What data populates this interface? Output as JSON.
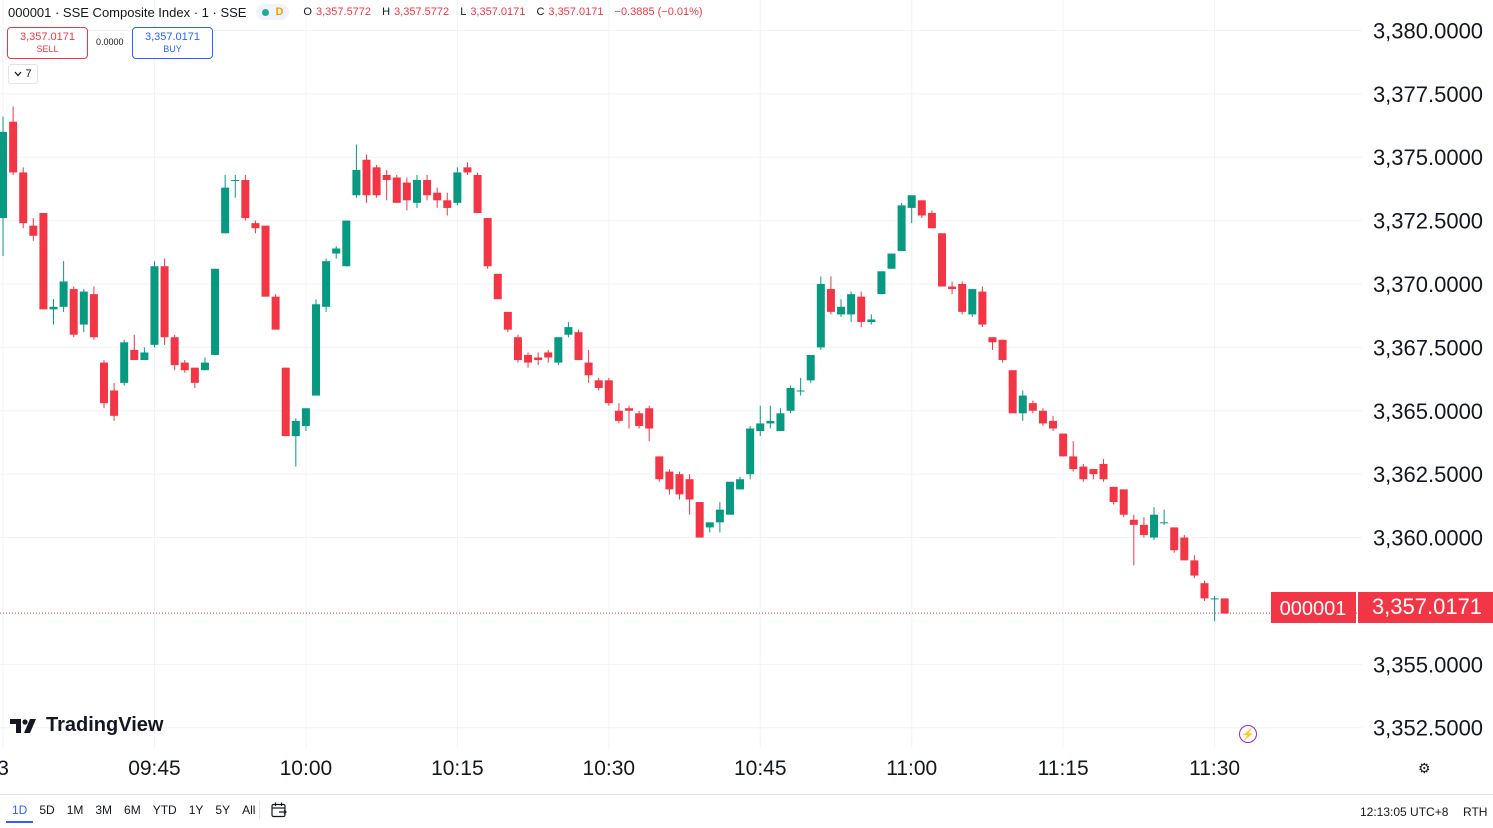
{
  "symbol": {
    "title": "000001 · SSE Composite Index · 1 · SSE",
    "badge": "D",
    "ohlc": {
      "o_label": "O",
      "o": "3,357.5772",
      "h_label": "H",
      "h": "3,357.5772",
      "l_label": "L",
      "l": "3,357.0171",
      "c_label": "C",
      "c": "3,357.0171",
      "change": "−0.3885 (−0.01%)"
    }
  },
  "trade": {
    "sell_price": "3,357.0171",
    "sell_label": "SELL",
    "spread": "0.0000",
    "buy_price": "3,357.0171",
    "buy_label": "BUY",
    "indicator_count": "7"
  },
  "price_tag": {
    "symbol": "000001",
    "price": "3,357.0171"
  },
  "watermark": "TradingView",
  "bottom": {
    "ranges": [
      "1D",
      "5D",
      "1M",
      "3M",
      "6M",
      "YTD",
      "1Y",
      "5Y",
      "All"
    ],
    "active_range": "1D",
    "clock": "12:13:05 UTC+8",
    "session": "RTH"
  },
  "colors": {
    "up": "#089981",
    "down": "#f23645",
    "accent": "#2962ff"
  },
  "chart_data": {
    "type": "candlestick",
    "interval": "1 minute",
    "y_ticks": [
      "3,380.0000",
      "3,377.5000",
      "3,375.0000",
      "3,372.5000",
      "3,370.0000",
      "3,367.5000",
      "3,365.0000",
      "3,362.5000",
      "3,360.0000",
      "3,355.0000",
      "3,352.5000"
    ],
    "y_tick_values": [
      3380,
      3377.5,
      3375,
      3372.5,
      3370,
      3367.5,
      3365,
      3362.5,
      3360,
      3355,
      3352.5
    ],
    "ylim": [
      3351.7,
      3381.2
    ],
    "x_ticks": [
      "3",
      "09:45",
      "10:00",
      "10:15",
      "10:30",
      "10:45",
      "11:00",
      "11:15",
      "11:30"
    ],
    "x_tick_minutes": [
      570,
      585,
      600,
      615,
      630,
      645,
      660,
      675,
      690
    ],
    "xlim_minutes": [
      569.7,
      704.6
    ],
    "last_price": 3357.0171,
    "candles": [
      {
        "t": 569,
        "o": 3371.1,
        "h": 3372.4,
        "l": 3370.7,
        "c": 3372.4
      },
      {
        "t": 570,
        "o": 3372.6,
        "h": 3376.6,
        "l": 3371.1,
        "c": 3376.0
      },
      {
        "t": 571,
        "o": 3376.4,
        "h": 3377.0,
        "l": 3374.3,
        "c": 3374.4
      },
      {
        "t": 572,
        "o": 3374.4,
        "h": 3374.6,
        "l": 3372.2,
        "c": 3372.4
      },
      {
        "t": 573,
        "o": 3372.3,
        "h": 3372.6,
        "l": 3371.7,
        "c": 3371.9
      },
      {
        "t": 574,
        "o": 3372.8,
        "h": 3372.8,
        "l": 3369.0,
        "c": 3369.0
      },
      {
        "t": 575,
        "o": 3369.0,
        "h": 3369.4,
        "l": 3368.4,
        "c": 3369.1
      },
      {
        "t": 576,
        "o": 3369.1,
        "h": 3370.9,
        "l": 3368.9,
        "c": 3370.1
      },
      {
        "t": 577,
        "o": 3369.8,
        "h": 3369.9,
        "l": 3367.9,
        "c": 3368.0
      },
      {
        "t": 578,
        "o": 3368.4,
        "h": 3369.8,
        "l": 3368.1,
        "c": 3369.7
      },
      {
        "t": 579,
        "o": 3369.6,
        "h": 3369.9,
        "l": 3367.8,
        "c": 3367.9
      },
      {
        "t": 580,
        "o": 3366.9,
        "h": 3367.0,
        "l": 3365.1,
        "c": 3365.3
      },
      {
        "t": 581,
        "o": 3365.8,
        "h": 3366.1,
        "l": 3364.6,
        "c": 3364.8
      },
      {
        "t": 582,
        "o": 3366.1,
        "h": 3367.8,
        "l": 3366.0,
        "c": 3367.7
      },
      {
        "t": 583,
        "o": 3367.4,
        "h": 3368.0,
        "l": 3367.0,
        "c": 3367.0
      },
      {
        "t": 584,
        "o": 3367.0,
        "h": 3367.5,
        "l": 3367.0,
        "c": 3367.3
      },
      {
        "t": 585,
        "o": 3367.6,
        "h": 3370.9,
        "l": 3367.5,
        "c": 3370.7
      },
      {
        "t": 586,
        "o": 3370.7,
        "h": 3371.0,
        "l": 3367.6,
        "c": 3367.9
      },
      {
        "t": 587,
        "o": 3367.9,
        "h": 3368.0,
        "l": 3366.6,
        "c": 3366.8
      },
      {
        "t": 588,
        "o": 3366.9,
        "h": 3367.0,
        "l": 3366.5,
        "c": 3366.6
      },
      {
        "t": 589,
        "o": 3366.7,
        "h": 3366.7,
        "l": 3365.9,
        "c": 3366.1
      },
      {
        "t": 590,
        "o": 3366.6,
        "h": 3367.1,
        "l": 3366.6,
        "c": 3366.9
      },
      {
        "t": 591,
        "o": 3367.2,
        "h": 3370.6,
        "l": 3367.2,
        "c": 3370.6
      },
      {
        "t": 592,
        "o": 3372.0,
        "h": 3374.3,
        "l": 3372.0,
        "c": 3373.8
      },
      {
        "t": 593,
        "o": 3374.1,
        "h": 3374.3,
        "l": 3373.4,
        "c": 3374.1
      },
      {
        "t": 594,
        "o": 3374.1,
        "h": 3374.3,
        "l": 3372.5,
        "c": 3372.6
      },
      {
        "t": 595,
        "o": 3372.4,
        "h": 3372.5,
        "l": 3372.0,
        "c": 3372.2
      },
      {
        "t": 596,
        "o": 3372.3,
        "h": 3372.3,
        "l": 3369.5,
        "c": 3369.5
      },
      {
        "t": 597,
        "o": 3369.5,
        "h": 3369.6,
        "l": 3368.2,
        "c": 3368.2
      },
      {
        "t": 598,
        "o": 3366.7,
        "h": 3366.7,
        "l": 3364.0,
        "c": 3364.0
      },
      {
        "t": 599,
        "o": 3364.0,
        "h": 3364.7,
        "l": 3362.8,
        "c": 3364.6
      },
      {
        "t": 600,
        "o": 3364.4,
        "h": 3365.1,
        "l": 3364.2,
        "c": 3365.1
      },
      {
        "t": 601,
        "o": 3365.6,
        "h": 3369.4,
        "l": 3365.6,
        "c": 3369.2
      },
      {
        "t": 602,
        "o": 3369.1,
        "h": 3371.0,
        "l": 3368.9,
        "c": 3370.9
      },
      {
        "t": 603,
        "o": 3371.2,
        "h": 3371.5,
        "l": 3371.0,
        "c": 3371.4
      },
      {
        "t": 604,
        "o": 3370.7,
        "h": 3372.5,
        "l": 3370.7,
        "c": 3372.5
      },
      {
        "t": 605,
        "o": 3373.5,
        "h": 3375.5,
        "l": 3373.4,
        "c": 3374.5
      },
      {
        "t": 606,
        "o": 3374.9,
        "h": 3375.1,
        "l": 3373.2,
        "c": 3373.5
      },
      {
        "t": 607,
        "o": 3374.6,
        "h": 3374.7,
        "l": 3373.4,
        "c": 3373.5
      },
      {
        "t": 608,
        "o": 3374.3,
        "h": 3374.5,
        "l": 3373.3,
        "c": 3374.1
      },
      {
        "t": 609,
        "o": 3374.2,
        "h": 3374.3,
        "l": 3373.2,
        "c": 3373.2
      },
      {
        "t": 610,
        "o": 3374.0,
        "h": 3374.2,
        "l": 3372.9,
        "c": 3373.3
      },
      {
        "t": 611,
        "o": 3373.2,
        "h": 3374.3,
        "l": 3373.0,
        "c": 3374.1
      },
      {
        "t": 612,
        "o": 3374.1,
        "h": 3374.3,
        "l": 3373.3,
        "c": 3373.5
      },
      {
        "t": 613,
        "o": 3373.6,
        "h": 3373.8,
        "l": 3373.0,
        "c": 3373.3
      },
      {
        "t": 614,
        "o": 3373.3,
        "h": 3373.6,
        "l": 3372.7,
        "c": 3373.0
      },
      {
        "t": 615,
        "o": 3373.2,
        "h": 3374.6,
        "l": 3373.1,
        "c": 3374.4
      },
      {
        "t": 616,
        "o": 3374.6,
        "h": 3374.8,
        "l": 3374.3,
        "c": 3374.4
      },
      {
        "t": 617,
        "o": 3374.3,
        "h": 3374.4,
        "l": 3372.8,
        "c": 3372.8
      },
      {
        "t": 618,
        "o": 3372.6,
        "h": 3372.6,
        "l": 3370.6,
        "c": 3370.7
      },
      {
        "t": 619,
        "o": 3370.4,
        "h": 3370.4,
        "l": 3369.4,
        "c": 3369.4
      },
      {
        "t": 620,
        "o": 3368.9,
        "h": 3368.9,
        "l": 3368.1,
        "c": 3368.2
      },
      {
        "t": 621,
        "o": 3367.9,
        "h": 3368.0,
        "l": 3366.9,
        "c": 3367.0
      },
      {
        "t": 622,
        "o": 3367.2,
        "h": 3367.3,
        "l": 3366.7,
        "c": 3366.9
      },
      {
        "t": 623,
        "o": 3367.1,
        "h": 3367.3,
        "l": 3366.8,
        "c": 3367.0
      },
      {
        "t": 624,
        "o": 3367.3,
        "h": 3367.4,
        "l": 3366.9,
        "c": 3367.1
      },
      {
        "t": 625,
        "o": 3366.9,
        "h": 3367.9,
        "l": 3366.8,
        "c": 3367.9
      },
      {
        "t": 626,
        "o": 3368.0,
        "h": 3368.5,
        "l": 3367.9,
        "c": 3368.3
      },
      {
        "t": 627,
        "o": 3368.1,
        "h": 3368.2,
        "l": 3367.0,
        "c": 3367.0
      },
      {
        "t": 628,
        "o": 3366.9,
        "h": 3367.4,
        "l": 3366.1,
        "c": 3366.4
      },
      {
        "t": 629,
        "o": 3366.2,
        "h": 3366.3,
        "l": 3365.8,
        "c": 3365.9
      },
      {
        "t": 630,
        "o": 3366.2,
        "h": 3366.3,
        "l": 3365.2,
        "c": 3365.3
      },
      {
        "t": 631,
        "o": 3365.0,
        "h": 3365.3,
        "l": 3364.5,
        "c": 3364.6
      },
      {
        "t": 632,
        "o": 3365.1,
        "h": 3365.2,
        "l": 3364.3,
        "c": 3365.0
      },
      {
        "t": 633,
        "o": 3364.9,
        "h": 3365.0,
        "l": 3364.3,
        "c": 3364.4
      },
      {
        "t": 634,
        "o": 3365.1,
        "h": 3365.2,
        "l": 3363.8,
        "c": 3364.3
      },
      {
        "t": 635,
        "o": 3363.2,
        "h": 3363.2,
        "l": 3362.2,
        "c": 3362.3
      },
      {
        "t": 636,
        "o": 3362.6,
        "h": 3362.7,
        "l": 3361.7,
        "c": 3361.9
      },
      {
        "t": 637,
        "o": 3362.5,
        "h": 3362.6,
        "l": 3361.5,
        "c": 3361.7
      },
      {
        "t": 638,
        "o": 3362.3,
        "h": 3362.5,
        "l": 3360.9,
        "c": 3361.5
      },
      {
        "t": 639,
        "o": 3361.4,
        "h": 3361.4,
        "l": 3360.0,
        "c": 3360.0
      },
      {
        "t": 640,
        "o": 3360.4,
        "h": 3360.6,
        "l": 3360.2,
        "c": 3360.6
      },
      {
        "t": 641,
        "o": 3360.6,
        "h": 3361.4,
        "l": 3360.2,
        "c": 3361.1
      },
      {
        "t": 642,
        "o": 3360.9,
        "h": 3362.2,
        "l": 3360.9,
        "c": 3362.2
      },
      {
        "t": 643,
        "o": 3361.9,
        "h": 3362.4,
        "l": 3361.9,
        "c": 3362.3
      },
      {
        "t": 644,
        "o": 3362.5,
        "h": 3364.4,
        "l": 3362.3,
        "c": 3364.3
      },
      {
        "t": 645,
        "o": 3364.2,
        "h": 3365.2,
        "l": 3364.0,
        "c": 3364.5
      },
      {
        "t": 646,
        "o": 3364.5,
        "h": 3365.2,
        "l": 3364.3,
        "c": 3364.6
      },
      {
        "t": 647,
        "o": 3364.2,
        "h": 3365.1,
        "l": 3364.2,
        "c": 3364.9
      },
      {
        "t": 648,
        "o": 3365.0,
        "h": 3366.0,
        "l": 3364.9,
        "c": 3365.9
      },
      {
        "t": 649,
        "o": 3365.8,
        "h": 3366.3,
        "l": 3365.6,
        "c": 3365.8
      },
      {
        "t": 650,
        "o": 3366.2,
        "h": 3367.2,
        "l": 3366.1,
        "c": 3367.2
      },
      {
        "t": 651,
        "o": 3367.5,
        "h": 3370.3,
        "l": 3367.4,
        "c": 3370.0
      },
      {
        "t": 652,
        "o": 3369.8,
        "h": 3370.3,
        "l": 3368.8,
        "c": 3368.9
      },
      {
        "t": 653,
        "o": 3368.8,
        "h": 3369.4,
        "l": 3368.7,
        "c": 3369.1
      },
      {
        "t": 654,
        "o": 3368.8,
        "h": 3369.7,
        "l": 3368.5,
        "c": 3369.6
      },
      {
        "t": 655,
        "o": 3369.5,
        "h": 3369.7,
        "l": 3368.3,
        "c": 3368.5
      },
      {
        "t": 656,
        "o": 3368.5,
        "h": 3368.8,
        "l": 3368.4,
        "c": 3368.6
      },
      {
        "t": 657,
        "o": 3369.6,
        "h": 3370.5,
        "l": 3369.6,
        "c": 3370.5
      },
      {
        "t": 658,
        "o": 3370.6,
        "h": 3371.2,
        "l": 3370.6,
        "c": 3371.2
      },
      {
        "t": 659,
        "o": 3371.3,
        "h": 3373.2,
        "l": 3371.3,
        "c": 3373.1
      },
      {
        "t": 660,
        "o": 3373.0,
        "h": 3373.5,
        "l": 3372.4,
        "c": 3373.5
      },
      {
        "t": 661,
        "o": 3373.3,
        "h": 3373.3,
        "l": 3372.6,
        "c": 3372.7
      },
      {
        "t": 662,
        "o": 3372.8,
        "h": 3372.9,
        "l": 3372.2,
        "c": 3372.2
      },
      {
        "t": 663,
        "o": 3372.0,
        "h": 3372.0,
        "l": 3369.9,
        "c": 3369.9
      },
      {
        "t": 664,
        "o": 3369.9,
        "h": 3370.1,
        "l": 3369.6,
        "c": 3369.8
      },
      {
        "t": 665,
        "o": 3370.0,
        "h": 3370.1,
        "l": 3368.8,
        "c": 3368.9
      },
      {
        "t": 666,
        "o": 3368.8,
        "h": 3369.8,
        "l": 3368.7,
        "c": 3369.8
      },
      {
        "t": 667,
        "o": 3369.7,
        "h": 3369.9,
        "l": 3368.3,
        "c": 3368.4
      },
      {
        "t": 668,
        "o": 3367.9,
        "h": 3367.9,
        "l": 3367.4,
        "c": 3367.7
      },
      {
        "t": 669,
        "o": 3367.8,
        "h": 3367.8,
        "l": 3366.9,
        "c": 3367.0
      },
      {
        "t": 670,
        "o": 3366.6,
        "h": 3366.6,
        "l": 3364.9,
        "c": 3364.9
      },
      {
        "t": 671,
        "o": 3364.9,
        "h": 3365.8,
        "l": 3364.6,
        "c": 3365.6
      },
      {
        "t": 672,
        "o": 3365.3,
        "h": 3365.4,
        "l": 3364.9,
        "c": 3365.0
      },
      {
        "t": 673,
        "o": 3365.0,
        "h": 3365.1,
        "l": 3364.4,
        "c": 3364.5
      },
      {
        "t": 674,
        "o": 3364.6,
        "h": 3364.8,
        "l": 3364.2,
        "c": 3364.3
      },
      {
        "t": 675,
        "o": 3364.1,
        "h": 3364.1,
        "l": 3363.2,
        "c": 3363.2
      },
      {
        "t": 676,
        "o": 3363.2,
        "h": 3363.8,
        "l": 3362.6,
        "c": 3362.7
      },
      {
        "t": 677,
        "o": 3362.8,
        "h": 3362.9,
        "l": 3362.2,
        "c": 3362.3
      },
      {
        "t": 678,
        "o": 3362.7,
        "h": 3362.7,
        "l": 3362.3,
        "c": 3362.5
      },
      {
        "t": 679,
        "o": 3362.9,
        "h": 3363.1,
        "l": 3362.2,
        "c": 3362.3
      },
      {
        "t": 680,
        "o": 3362.0,
        "h": 3362.0,
        "l": 3361.3,
        "c": 3361.4
      },
      {
        "t": 681,
        "o": 3361.9,
        "h": 3361.9,
        "l": 3360.8,
        "c": 3360.9
      },
      {
        "t": 682,
        "o": 3360.7,
        "h": 3360.9,
        "l": 3358.9,
        "c": 3360.5
      },
      {
        "t": 683,
        "o": 3360.5,
        "h": 3360.8,
        "l": 3360.0,
        "c": 3360.1
      },
      {
        "t": 684,
        "o": 3360.0,
        "h": 3361.2,
        "l": 3359.9,
        "c": 3360.9
      },
      {
        "t": 685,
        "o": 3360.6,
        "h": 3361.1,
        "l": 3360.5,
        "c": 3360.6
      },
      {
        "t": 686,
        "o": 3360.4,
        "h": 3360.4,
        "l": 3359.4,
        "c": 3359.5
      },
      {
        "t": 687,
        "o": 3360.0,
        "h": 3360.1,
        "l": 3359.1,
        "c": 3359.1
      },
      {
        "t": 688,
        "o": 3359.1,
        "h": 3359.3,
        "l": 3358.4,
        "c": 3358.5
      },
      {
        "t": 689,
        "o": 3358.2,
        "h": 3358.3,
        "l": 3357.5,
        "c": 3357.6
      },
      {
        "t": 690,
        "o": 3357.6,
        "h": 3357.7,
        "l": 3356.7,
        "c": 3357.6
      },
      {
        "t": 691,
        "o": 3357.6,
        "h": 3357.6,
        "l": 3357.0,
        "c": 3357.0
      }
    ]
  }
}
